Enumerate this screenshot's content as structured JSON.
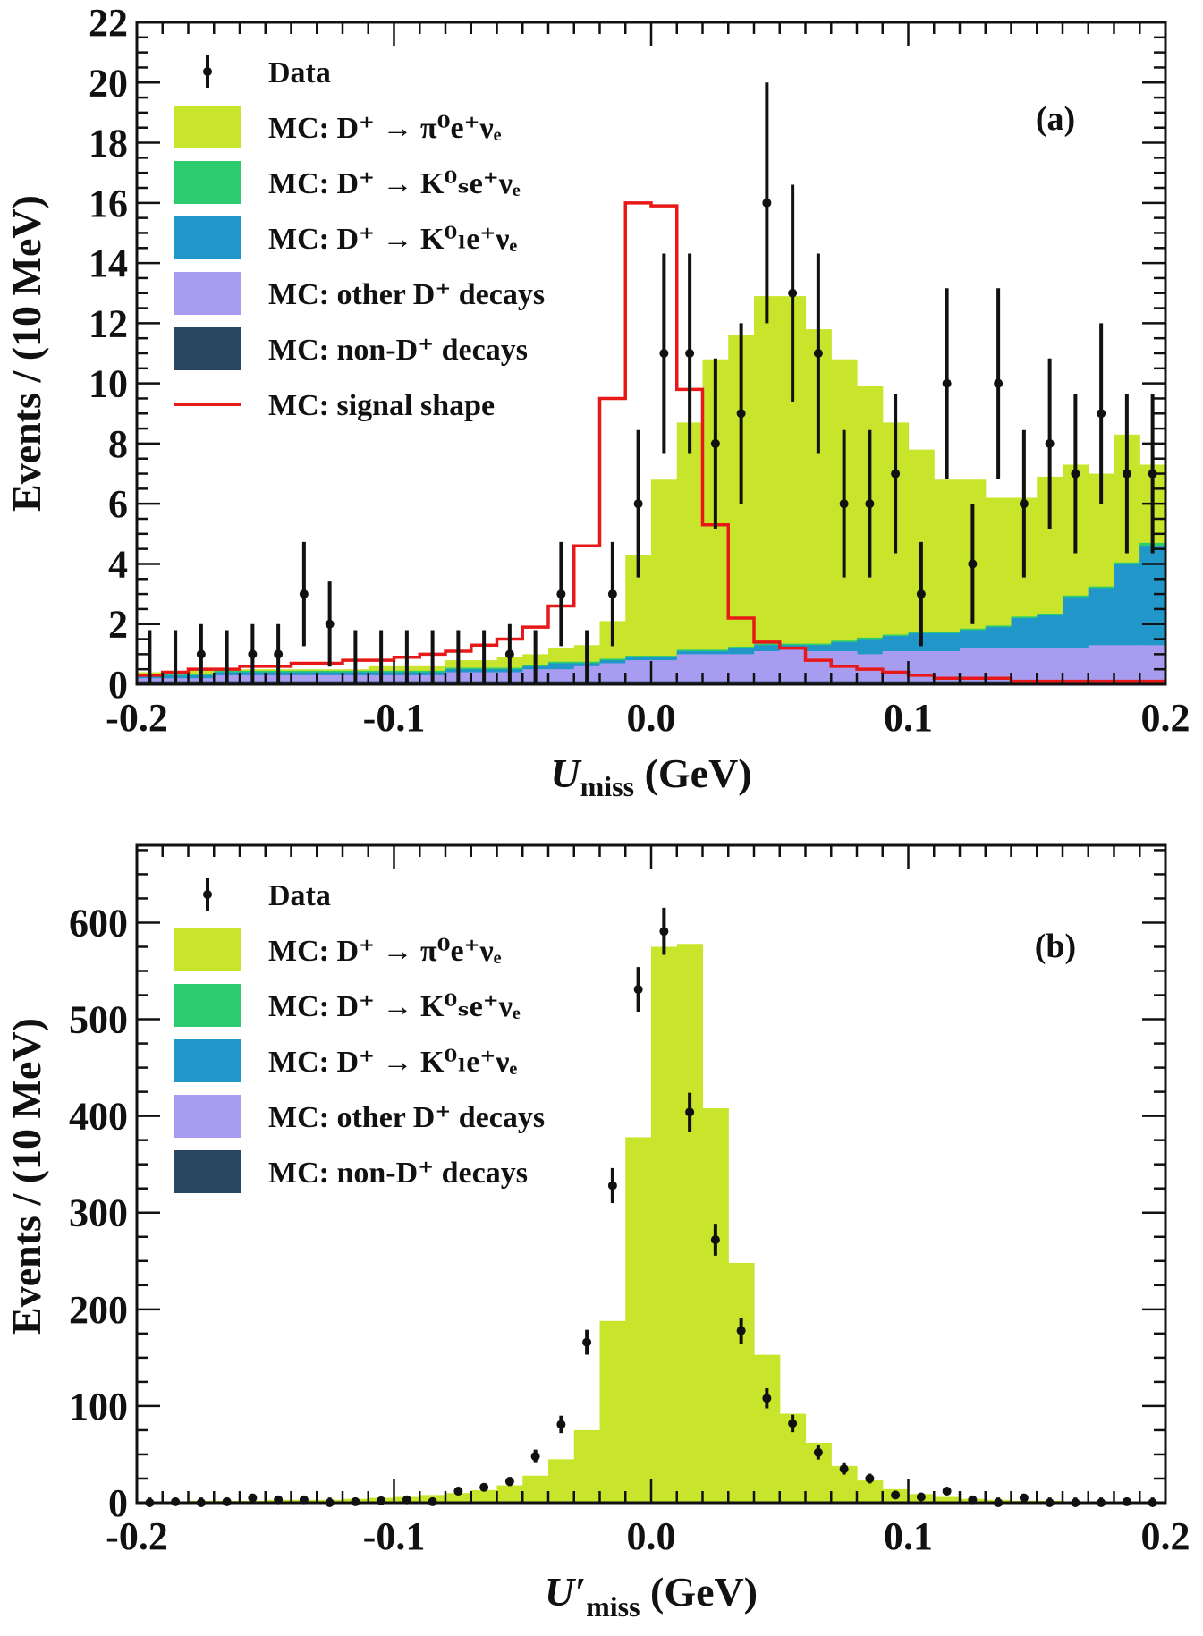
{
  "colors": {
    "pi0": "#c8e52b",
    "ks": "#2ecc71",
    "kl": "#2196c8",
    "other": "#a89cf0",
    "nonD": "#2a4761",
    "signal": "#e81818",
    "data": "#111111"
  },
  "chart_data": [
    {
      "type": "histogram",
      "panel_label": "(a)",
      "xlabel": "U",
      "xlabel_sub": "miss",
      "xlabel_unit": " (GeV)",
      "ylabel": "Events / (10 MeV)",
      "xlim": [
        -0.2,
        0.2
      ],
      "ylim": [
        0,
        22
      ],
      "bin_width": 0.01,
      "xticks": [
        -0.2,
        -0.1,
        0.0,
        0.1,
        0.2
      ],
      "xtick_labels": [
        "-0.2",
        "-0.1",
        "0.0",
        "0.1",
        "0.2"
      ],
      "yticks": [
        0,
        2,
        4,
        6,
        8,
        10,
        12,
        14,
        16,
        18,
        20,
        22
      ],
      "ytick_labels": [
        "0",
        "2",
        "4",
        "6",
        "8",
        "10",
        "12",
        "14",
        "16",
        "18",
        "20",
        "22"
      ],
      "legend_position": "top-left",
      "legend": [
        {
          "key": "data",
          "label": "Data"
        },
        {
          "key": "pi0",
          "label": "MC: D⁺ → π⁰e⁺νₑ"
        },
        {
          "key": "ks",
          "label": "MC: D⁺ → K⁰ₛe⁺νₑ"
        },
        {
          "key": "kl",
          "label": "MC: D⁺ → K⁰ₗe⁺νₑ"
        },
        {
          "key": "other",
          "label": "MC: other D⁺ decays"
        },
        {
          "key": "nonD",
          "label": "MC: non-D⁺ decays"
        },
        {
          "key": "signal",
          "label": "MC: signal shape"
        }
      ],
      "bins_low_edge": [
        -0.2,
        -0.19,
        -0.18,
        -0.17,
        -0.16,
        -0.15,
        -0.14,
        -0.13,
        -0.12,
        -0.11,
        -0.1,
        -0.09,
        -0.08,
        -0.07,
        -0.06,
        -0.05,
        -0.04,
        -0.03,
        -0.02,
        -0.01,
        0.0,
        0.01,
        0.02,
        0.03,
        0.04,
        0.05,
        0.06,
        0.07,
        0.08,
        0.09,
        0.1,
        0.11,
        0.12,
        0.13,
        0.14,
        0.15,
        0.16,
        0.17,
        0.18,
        0.19
      ],
      "stack_cumulative": {
        "nonD": [
          0.1,
          0.1,
          0.1,
          0.1,
          0.1,
          0.1,
          0.1,
          0.1,
          0.1,
          0.1,
          0.1,
          0.1,
          0.1,
          0.1,
          0.1,
          0.1,
          0.1,
          0.1,
          0.1,
          0.1,
          0.1,
          0.1,
          0.1,
          0.1,
          0.1,
          0.1,
          0.1,
          0.1,
          0.1,
          0.1,
          0.1,
          0.1,
          0.1,
          0.1,
          0.1,
          0.1,
          0.1,
          0.1,
          0.1,
          0.1
        ],
        "other": [
          0.2,
          0.2,
          0.2,
          0.3,
          0.3,
          0.3,
          0.3,
          0.3,
          0.3,
          0.3,
          0.3,
          0.3,
          0.4,
          0.4,
          0.4,
          0.5,
          0.5,
          0.6,
          0.7,
          0.8,
          0.8,
          1.0,
          1.0,
          1.0,
          1.1,
          1.2,
          1.1,
          1.1,
          1.0,
          1.1,
          1.1,
          1.1,
          1.2,
          1.2,
          1.2,
          1.2,
          1.2,
          1.3,
          1.3,
          1.3
        ],
        "kl": [
          0.3,
          0.3,
          0.3,
          0.4,
          0.4,
          0.4,
          0.4,
          0.4,
          0.4,
          0.4,
          0.4,
          0.4,
          0.5,
          0.5,
          0.5,
          0.6,
          0.7,
          0.7,
          0.8,
          0.9,
          0.9,
          1.1,
          1.1,
          1.2,
          1.3,
          1.3,
          1.3,
          1.4,
          1.5,
          1.6,
          1.7,
          1.7,
          1.8,
          1.9,
          2.2,
          2.3,
          2.9,
          3.2,
          4.0,
          4.6
        ],
        "ks": [
          0.35,
          0.35,
          0.35,
          0.45,
          0.45,
          0.45,
          0.45,
          0.45,
          0.45,
          0.45,
          0.45,
          0.45,
          0.55,
          0.55,
          0.55,
          0.65,
          0.75,
          0.75,
          0.85,
          0.95,
          0.95,
          1.15,
          1.15,
          1.25,
          1.35,
          1.35,
          1.35,
          1.45,
          1.55,
          1.65,
          1.75,
          1.75,
          1.85,
          1.95,
          2.25,
          2.35,
          2.95,
          3.25,
          4.05,
          4.7
        ],
        "pi0": [
          0.4,
          0.4,
          0.5,
          0.5,
          0.5,
          0.5,
          0.5,
          0.5,
          0.5,
          0.6,
          0.6,
          0.6,
          0.8,
          0.8,
          0.9,
          1.0,
          1.2,
          1.3,
          2.1,
          4.3,
          6.8,
          8.7,
          10.8,
          11.6,
          12.9,
          12.9,
          11.8,
          10.8,
          9.9,
          8.7,
          7.8,
          6.8,
          6.8,
          6.2,
          6.2,
          6.9,
          7.3,
          7.0,
          8.3,
          7.3
        ]
      },
      "signal": [
        0.3,
        0.4,
        0.5,
        0.5,
        0.6,
        0.6,
        0.7,
        0.7,
        0.8,
        0.8,
        0.9,
        1.0,
        1.1,
        1.3,
        1.5,
        1.9,
        2.6,
        4.6,
        9.5,
        16.0,
        15.9,
        9.8,
        5.3,
        2.2,
        1.4,
        1.2,
        0.8,
        0.6,
        0.5,
        0.4,
        0.3,
        0.2,
        0.2,
        0.2,
        0.1,
        0.1,
        0.1,
        0.1,
        0.1,
        0.1
      ],
      "data": {
        "x": [
          -0.195,
          -0.185,
          -0.175,
          -0.165,
          -0.155,
          -0.145,
          -0.135,
          -0.125,
          -0.115,
          -0.105,
          -0.095,
          -0.085,
          -0.075,
          -0.065,
          -0.055,
          -0.045,
          -0.035,
          -0.025,
          -0.015,
          -0.005,
          0.005,
          0.015,
          0.025,
          0.035,
          0.045,
          0.055,
          0.065,
          0.075,
          0.085,
          0.095,
          0.105,
          0.115,
          0.125,
          0.135,
          0.145,
          0.155,
          0.165,
          0.175,
          0.185,
          0.195
        ],
        "y": [
          0,
          0,
          1,
          0,
          1,
          1,
          3,
          2,
          0,
          0,
          0,
          0,
          0,
          0,
          1,
          0,
          3,
          0,
          3,
          6,
          11,
          11,
          8,
          9,
          16,
          13,
          11,
          6,
          6,
          7,
          3,
          10,
          4,
          10,
          6,
          8,
          7,
          9,
          7,
          7
        ]
      }
    },
    {
      "type": "histogram",
      "panel_label": "(b)",
      "xlabel": "U′",
      "xlabel_sub": "miss",
      "xlabel_unit": " (GeV)",
      "ylabel": "Events / (10 MeV)",
      "xlim": [
        -0.2,
        0.2
      ],
      "ylim": [
        0,
        680
      ],
      "bin_width": 0.01,
      "xticks": [
        -0.2,
        -0.1,
        0.0,
        0.1,
        0.2
      ],
      "xtick_labels": [
        "-0.2",
        "-0.1",
        "0.0",
        "0.1",
        "0.2"
      ],
      "yticks": [
        0,
        100,
        200,
        300,
        400,
        500,
        600
      ],
      "ytick_labels": [
        "0",
        "100",
        "200",
        "300",
        "400",
        "500",
        "600"
      ],
      "legend_position": "top-left",
      "legend": [
        {
          "key": "data",
          "label": "Data"
        },
        {
          "key": "pi0",
          "label": "MC: D⁺ → π⁰e⁺νₑ"
        },
        {
          "key": "ks",
          "label": "MC: D⁺ → K⁰ₛe⁺νₑ"
        },
        {
          "key": "kl",
          "label": "MC: D⁺ → K⁰ₗe⁺νₑ"
        },
        {
          "key": "other",
          "label": "MC: other D⁺ decays"
        },
        {
          "key": "nonD",
          "label": "MC: non-D⁺ decays"
        }
      ],
      "bins_low_edge": [
        -0.2,
        -0.19,
        -0.18,
        -0.17,
        -0.16,
        -0.15,
        -0.14,
        -0.13,
        -0.12,
        -0.11,
        -0.1,
        -0.09,
        -0.08,
        -0.07,
        -0.06,
        -0.05,
        -0.04,
        -0.03,
        -0.02,
        -0.01,
        0.0,
        0.01,
        0.02,
        0.03,
        0.04,
        0.05,
        0.06,
        0.07,
        0.08,
        0.09,
        0.1,
        0.11,
        0.12,
        0.13,
        0.14,
        0.15,
        0.16,
        0.17,
        0.18,
        0.19
      ],
      "stack_cumulative": {
        "pi0": [
          1,
          1,
          2,
          2,
          2,
          3,
          3,
          3,
          4,
          5,
          6,
          8,
          10,
          13,
          18,
          28,
          45,
          75,
          188,
          378,
          575,
          578,
          408,
          248,
          153,
          92,
          62,
          38,
          23,
          14,
          9,
          6,
          4,
          3,
          2,
          2,
          1,
          1,
          1,
          1
        ]
      },
      "data": {
        "x": [
          -0.195,
          -0.185,
          -0.175,
          -0.165,
          -0.155,
          -0.145,
          -0.135,
          -0.125,
          -0.115,
          -0.105,
          -0.095,
          -0.085,
          -0.075,
          -0.065,
          -0.055,
          -0.045,
          -0.035,
          -0.025,
          -0.015,
          -0.005,
          0.005,
          0.015,
          0.025,
          0.035,
          0.045,
          0.055,
          0.065,
          0.075,
          0.085,
          0.095,
          0.105,
          0.115,
          0.125,
          0.135,
          0.145,
          0.155,
          0.165,
          0.175,
          0.185,
          0.195
        ],
        "y": [
          0,
          1,
          0,
          1,
          5,
          3,
          3,
          0,
          1,
          2,
          3,
          1,
          12,
          16,
          22,
          48,
          81,
          166,
          328,
          531,
          591,
          404,
          272,
          178,
          108,
          82,
          52,
          35,
          25,
          8,
          6,
          12,
          3,
          0,
          5,
          0,
          0,
          0,
          1,
          0
        ]
      }
    }
  ]
}
